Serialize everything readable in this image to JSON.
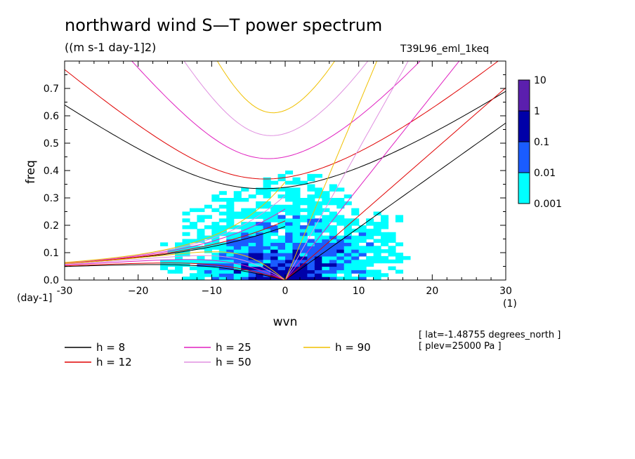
{
  "title": "northward wind S—T power spectrum",
  "units": "((m s-1 day-1]2)",
  "run_label": "T39L96_eml_1keq",
  "metadata": [
    "[ lat=-1.48755 degrees_north ]",
    "[ plev=25000 Pa ]"
  ],
  "chart_data": {
    "type": "heatmap",
    "xlabel": "wvn",
    "ylabel": "freq",
    "x_unit": "(1)",
    "y_unit": "(day-1]",
    "xlim": [
      -30,
      30
    ],
    "ylim": [
      0,
      0.8
    ],
    "xticks": [
      -30,
      -20,
      -10,
      0,
      10,
      20,
      30
    ],
    "xtick_labels": [
      "-30",
      "−20",
      "−10",
      "0",
      "10",
      "20",
      "30"
    ],
    "yticks": [
      0.0,
      0.1,
      0.2,
      0.3,
      0.4,
      0.5,
      0.6,
      0.7
    ],
    "ytick_labels": [
      "0.0",
      "0.1",
      "0.2",
      "0.3",
      "0.4",
      "0.5",
      "0.6",
      "0.7"
    ],
    "colorbar": {
      "levels": [
        "10",
        "1",
        "0.1",
        "0.01",
        "0.001"
      ],
      "colors": [
        "#5b1fae",
        "#0000a8",
        "#1a5cff",
        "#00ffff"
      ]
    },
    "dispersion_curves": [
      {
        "name": "h =  8",
        "h": 8,
        "color": "#000000"
      },
      {
        "name": "h = 12",
        "h": 12,
        "color": "#e00000"
      },
      {
        "name": "h = 25",
        "h": 25,
        "color": "#e020c0"
      },
      {
        "name": "h = 50",
        "h": 50,
        "color": "#e090e0"
      },
      {
        "name": "h = 90",
        "h": 90,
        "color": "#f0c000"
      }
    ],
    "curve_min_freq": {
      "ig": [
        0.335,
        0.37,
        0.425,
        0.53,
        0.615
      ],
      "mrg_asymptote": 0.058
    },
    "power_regions": [
      {
        "level": "0.001",
        "shape": "broad",
        "xr": [
          -22,
          22
        ],
        "yr": [
          0,
          0.52
        ]
      },
      {
        "level": "0.01",
        "shape": "core",
        "xr": [
          -12,
          10
        ],
        "yr": [
          0,
          0.2
        ]
      },
      {
        "level": "0.1",
        "shape": "core",
        "xr": [
          -8,
          6
        ],
        "yr": [
          0,
          0.1
        ]
      }
    ]
  }
}
